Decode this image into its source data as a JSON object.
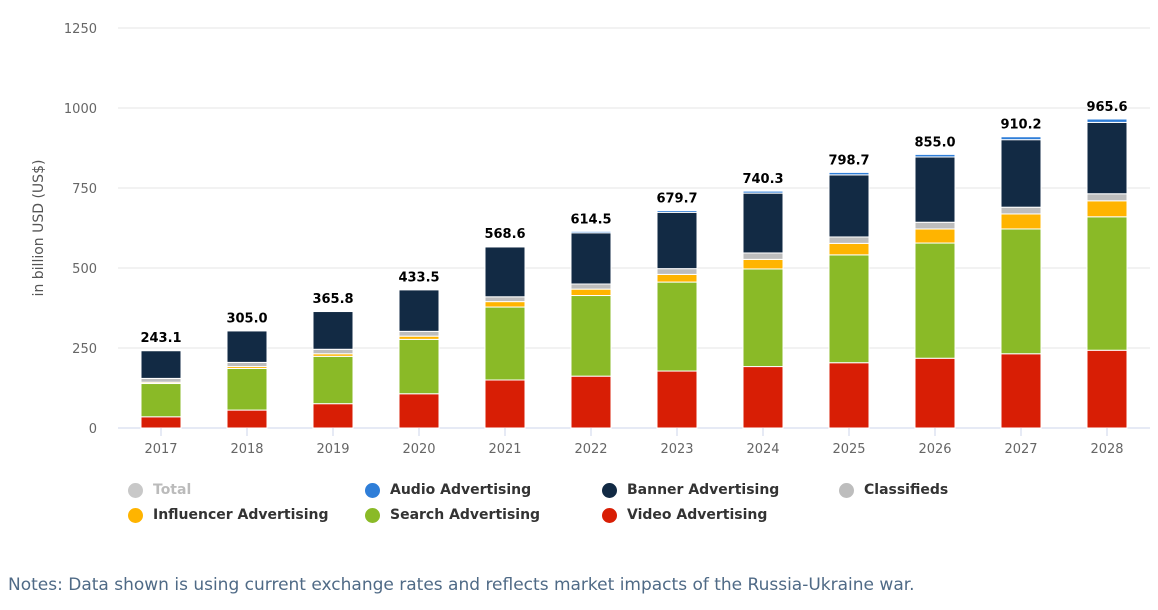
{
  "chart_data": {
    "type": "bar",
    "stacked": true,
    "title": "",
    "xlabel": "",
    "ylabel": "in billion USD (US$)",
    "ylim": [
      0,
      1250
    ],
    "yticks": [
      0,
      250,
      500,
      750,
      1000,
      1250
    ],
    "grid": true,
    "legend_position": "bottom",
    "categories": [
      "2017",
      "2018",
      "2019",
      "2020",
      "2021",
      "2022",
      "2023",
      "2024",
      "2025",
      "2026",
      "2027",
      "2028"
    ],
    "totals": [
      243.1,
      305.0,
      365.8,
      433.5,
      568.6,
      614.5,
      679.7,
      740.3,
      798.7,
      855.0,
      910.2,
      965.6
    ],
    "total_labels": [
      "243.1",
      "305.0",
      "365.8",
      "433.5",
      "568.6",
      "614.5",
      "679.7",
      "740.3",
      "798.7",
      "855.0",
      "910.2",
      "965.6"
    ],
    "series": [
      {
        "name": "Video Advertising",
        "color": "#d81e05",
        "values": [
          35,
          56,
          76,
          107,
          150,
          162,
          178,
          192,
          204,
          218,
          232,
          243
        ]
      },
      {
        "name": "Search Advertising",
        "color": "#8aba27",
        "values": [
          104,
          130,
          148,
          170,
          228,
          252,
          278,
          305,
          337,
          360,
          390,
          417
        ]
      },
      {
        "name": "Influencer Advertising",
        "color": "#ffb400",
        "values": [
          4,
          6,
          8,
          10,
          17,
          20,
          24,
          30,
          36,
          44,
          47,
          50
        ]
      },
      {
        "name": "Classifieds",
        "color": "#bdbdbd",
        "values": [
          12,
          13,
          14,
          15,
          15,
          16,
          18,
          20,
          20,
          21,
          21,
          22
        ]
      },
      {
        "name": "Banner Advertising",
        "color": "#122a44",
        "values": [
          87,
          99,
          118,
          130,
          156,
          160,
          176,
          187,
          194,
          204,
          211,
          223
        ]
      },
      {
        "name": "Audio Advertising",
        "color": "#2f7ed8",
        "values": [
          1.1,
          1.0,
          1.8,
          1.5,
          2.6,
          4.5,
          5.7,
          6.3,
          7.7,
          8.0,
          9.2,
          10.6
        ]
      }
    ]
  },
  "legend": {
    "items": [
      {
        "label": "Total",
        "color": "#c8c8c8",
        "hidden": true
      },
      {
        "label": "Audio Advertising",
        "color": "#2f7ed8"
      },
      {
        "label": "Banner Advertising",
        "color": "#122a44"
      },
      {
        "label": "Classifieds",
        "color": "#bdbdbd"
      },
      {
        "label": "Influencer Advertising",
        "color": "#ffb400"
      },
      {
        "label": "Search Advertising",
        "color": "#8aba27"
      },
      {
        "label": "Video Advertising",
        "color": "#d81e05"
      }
    ]
  },
  "notes": "Notes: Data shown is using current exchange rates and reflects market impacts of the Russia-Ukraine war."
}
